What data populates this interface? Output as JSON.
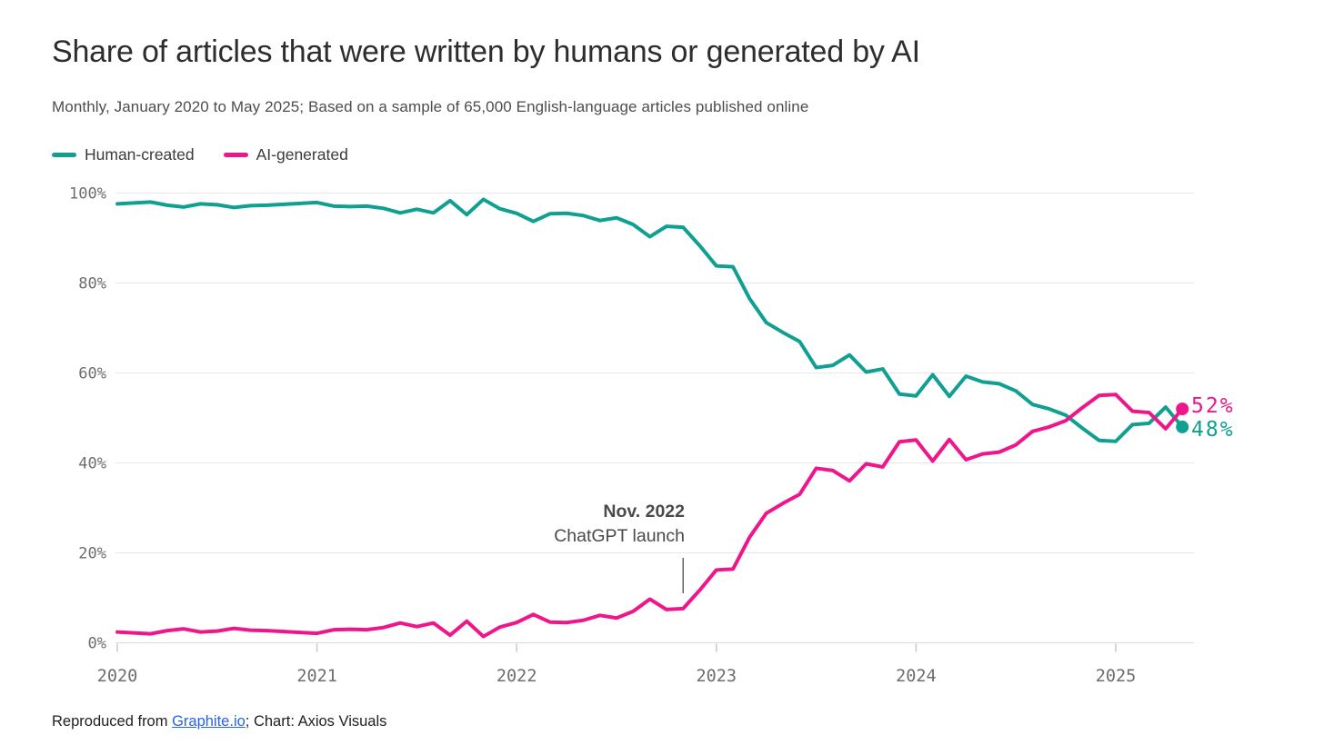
{
  "header": {
    "title": "Share of articles that were written by humans or generated by AI",
    "subtitle": "Monthly, January 2020 to May 2025; Based on a sample of 65,000 English-language articles published online"
  },
  "annotation": {
    "title": "Nov. 2022",
    "subtitle": "ChatGPT launch",
    "month_index": 34
  },
  "footer": {
    "prefix": "Reproduced from ",
    "link_text": "Graphite.io",
    "suffix": "; Chart: Axios Visuals",
    "link_color": "#2563eb"
  },
  "chart_data": {
    "type": "line",
    "x_axis": {
      "start": "Jan 2020",
      "end": "May 2025",
      "frequency": "monthly",
      "n_points": 65,
      "tick_labels": [
        "2020",
        "2021",
        "2022",
        "2023",
        "2024",
        "2025"
      ],
      "tick_month_indices": [
        0,
        12,
        24,
        36,
        48,
        60
      ]
    },
    "y_axis": {
      "ticks": [
        0,
        20,
        40,
        60,
        80,
        100
      ],
      "tick_suffix": "%",
      "ylim": [
        0,
        100
      ],
      "grid": true
    },
    "series": [
      {
        "name": "Human-created",
        "color": "#10a091",
        "values": [
          97.6,
          97.8,
          98.0,
          97.3,
          96.9,
          97.6,
          97.4,
          96.8,
          97.2,
          97.3,
          97.5,
          97.7,
          97.9,
          97.1,
          97.0,
          97.1,
          96.6,
          95.6,
          96.4,
          95.6,
          98.3,
          95.2,
          98.6,
          96.5,
          95.5,
          93.7,
          95.4,
          95.5,
          95.0,
          93.9,
          94.5,
          93.0,
          90.3,
          92.6,
          92.4,
          88.3,
          83.8,
          83.6,
          76.5,
          71.2,
          69.0,
          67.0,
          61.2,
          61.7,
          64.0,
          60.2,
          60.9,
          55.3,
          54.9,
          59.6,
          54.8,
          59.3,
          58.0,
          57.6,
          56.0,
          53.0,
          52.0,
          50.6,
          47.7,
          45.0,
          44.8,
          48.5,
          48.8,
          52.4,
          48.0
        ]
      },
      {
        "name": "AI-generated",
        "color": "#ef168c",
        "values": [
          2.4,
          2.2,
          2.0,
          2.7,
          3.1,
          2.4,
          2.6,
          3.2,
          2.8,
          2.7,
          2.5,
          2.3,
          2.1,
          2.9,
          3.0,
          2.9,
          3.4,
          4.4,
          3.6,
          4.4,
          1.7,
          4.8,
          1.4,
          3.5,
          4.5,
          6.3,
          4.6,
          4.5,
          5.0,
          6.1,
          5.5,
          7.0,
          9.7,
          7.4,
          7.6,
          11.7,
          16.2,
          16.4,
          23.5,
          28.8,
          31.0,
          33.0,
          38.8,
          38.3,
          36.0,
          39.8,
          39.1,
          44.7,
          45.1,
          40.4,
          45.2,
          40.7,
          42.0,
          42.4,
          44.0,
          47.0,
          48.0,
          49.4,
          52.3,
          55.0,
          55.2,
          51.5,
          51.2,
          47.6,
          52.0
        ]
      }
    ],
    "end_labels": {
      "human": "48%",
      "ai": "52%"
    },
    "colors": {
      "grid": "#e6e6e6",
      "zero_line": "#dcdcdc",
      "tick_mark": "#c8c8c8",
      "axis_text": "#6e6e6e",
      "annotation_line": "#3c3c3c"
    },
    "legend_position": "top-left"
  }
}
